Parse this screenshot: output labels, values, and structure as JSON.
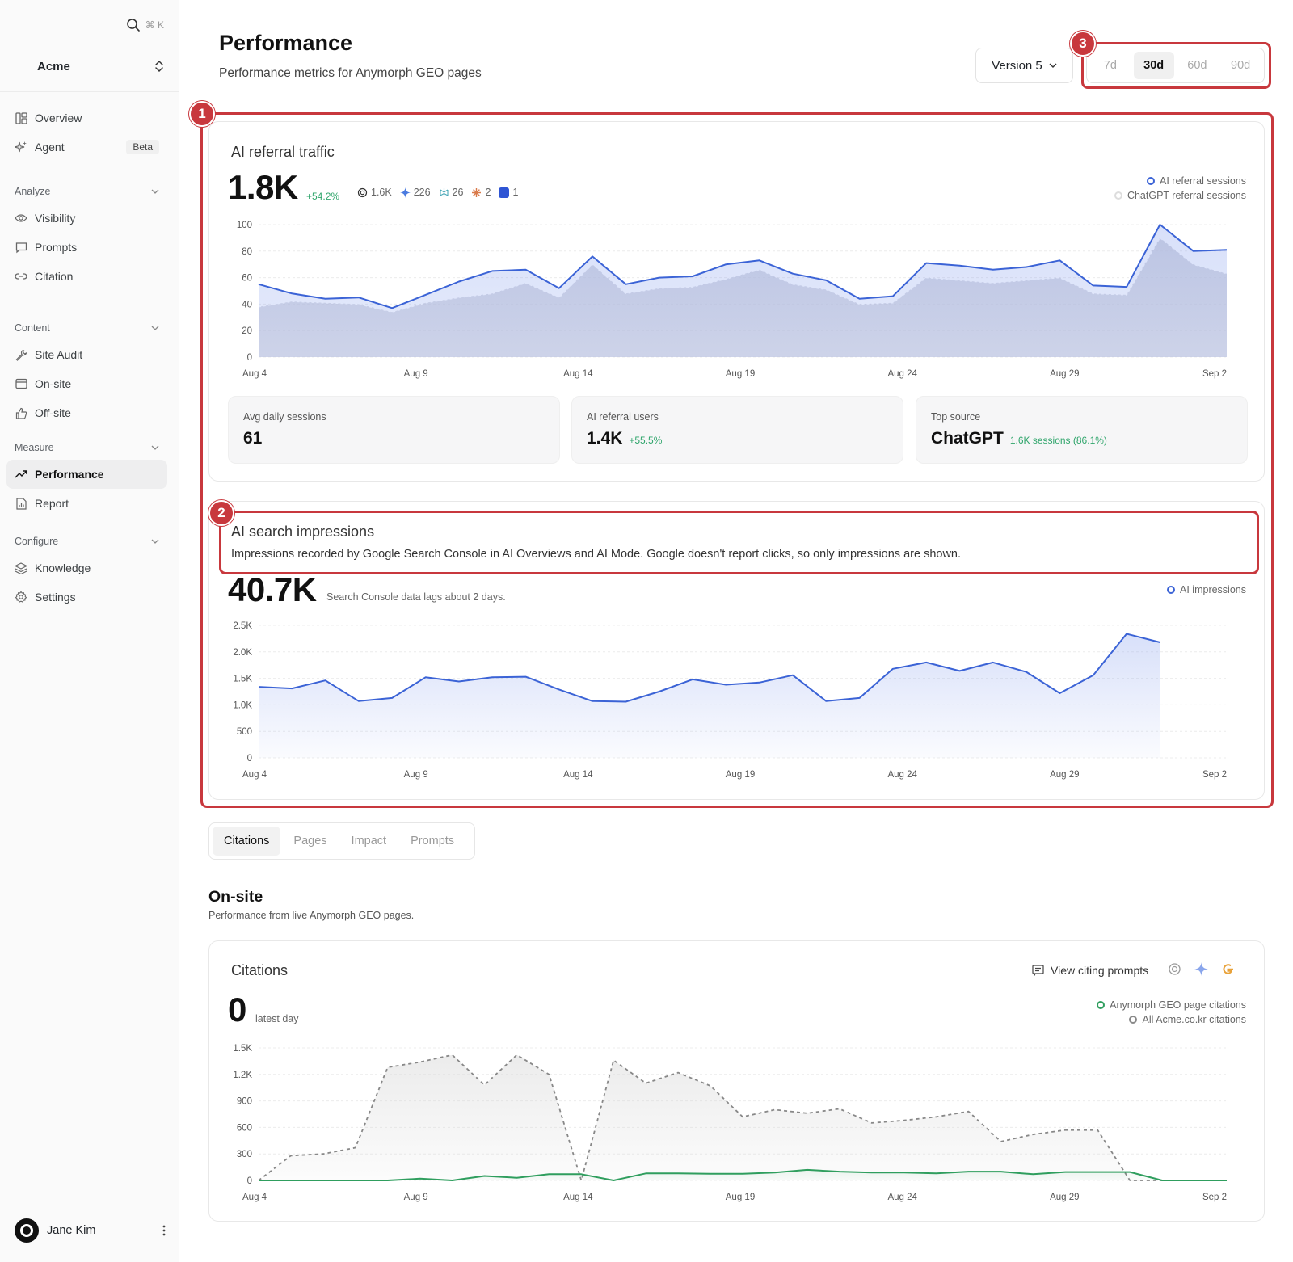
{
  "sidebar": {
    "search_shortcut": "⌘ K",
    "workspace": "Acme",
    "nav_top": [
      {
        "label": "Overview",
        "icon": "overview-icon"
      },
      {
        "label": "Agent",
        "icon": "sparkle-icon",
        "badge": "Beta"
      }
    ],
    "sections": [
      {
        "title": "Analyze",
        "items": [
          {
            "label": "Visibility",
            "icon": "eye-icon"
          },
          {
            "label": "Prompts",
            "icon": "chat-icon"
          },
          {
            "label": "Citation",
            "icon": "link-icon"
          }
        ]
      },
      {
        "title": "Content",
        "items": [
          {
            "label": "Site Audit",
            "icon": "wrench-icon"
          },
          {
            "label": "On-site",
            "icon": "window-icon"
          },
          {
            "label": "Off-site",
            "icon": "thumbs-up-icon"
          }
        ]
      },
      {
        "title": "Measure",
        "items": [
          {
            "label": "Performance",
            "icon": "trend-icon",
            "active": true
          },
          {
            "label": "Report",
            "icon": "report-icon"
          }
        ]
      },
      {
        "title": "Configure",
        "items": [
          {
            "label": "Knowledge",
            "icon": "layers-icon"
          },
          {
            "label": "Settings",
            "icon": "gear-icon"
          }
        ]
      }
    ],
    "user": "Jane Kim"
  },
  "header": {
    "title": "Performance",
    "subtitle": "Performance metrics for Anymorph GEO pages",
    "version": "Version 5",
    "ranges": [
      "7d",
      "30d",
      "60d",
      "90d"
    ],
    "active_range": "30d"
  },
  "annotations": [
    "1",
    "2",
    "3"
  ],
  "referral": {
    "title": "AI referral traffic",
    "total": "1.8K",
    "delta": "+54.2%",
    "sources": [
      {
        "icon": "openai-icon",
        "value": "1.6K",
        "color": "#333333"
      },
      {
        "icon": "gemini-icon",
        "value": "226",
        "color": "#4a7be0"
      },
      {
        "icon": "perplexity-icon",
        "value": "26",
        "color": "#4aa8b8"
      },
      {
        "icon": "claude-icon",
        "value": "2",
        "color": "#d97a4a"
      },
      {
        "icon": "copilot-icon",
        "value": "1",
        "color": "#2f55d4"
      }
    ],
    "legend": [
      "AI referral sessions",
      "ChatGPT referral sessions"
    ],
    "stats": [
      {
        "label": "Avg daily sessions",
        "value": "61",
        "sub": ""
      },
      {
        "label": "AI referral users",
        "value": "1.4K",
        "sub": "+55.5%"
      },
      {
        "label": "Top source",
        "value": "ChatGPT",
        "sub": "1.6K sessions (86.1%)"
      }
    ]
  },
  "impressions": {
    "title": "AI search impressions",
    "description": "Impressions recorded by Google Search Console in AI Overviews and AI Mode. Google doesn't report clicks, so only impressions are shown.",
    "total": "40.7K",
    "note": "Search Console data lags about 2 days.",
    "legend": [
      "AI impressions"
    ]
  },
  "tabs": [
    "Citations",
    "Pages",
    "Impact",
    "Prompts"
  ],
  "active_tab": "Citations",
  "onsite": {
    "title": "On-site",
    "subtitle": "Performance from live Anymorph GEO pages."
  },
  "citations": {
    "title": "Citations",
    "total": "0",
    "total_note": "latest day",
    "view_prompts": "View citing prompts",
    "legend": [
      "Anymorph GEO page citations",
      "All Acme.co.kr citations"
    ]
  },
  "chart_data": [
    {
      "type": "area",
      "title": "AI referral traffic",
      "x_ticks": [
        "Aug 4",
        "Aug 9",
        "Aug 14",
        "Aug 19",
        "Aug 24",
        "Aug 29",
        "Sep 2"
      ],
      "ylim": [
        0,
        100
      ],
      "y_ticks": [
        "0",
        "20",
        "40",
        "60",
        "80",
        "100"
      ],
      "series": [
        {
          "name": "AI referral sessions",
          "color": "#3b63d6",
          "values": [
            55,
            48,
            44,
            45,
            37,
            47,
            57,
            65,
            66,
            52,
            76,
            55,
            60,
            61,
            70,
            73,
            63,
            58,
            44,
            46,
            71,
            69,
            66,
            68,
            73,
            54,
            53,
            100,
            80,
            81
          ]
        },
        {
          "name": "ChatGPT referral sessions",
          "color": "#c9cbd6",
          "values": [
            38,
            42,
            41,
            40,
            34,
            41,
            45,
            48,
            56,
            45,
            70,
            48,
            52,
            53,
            59,
            66,
            55,
            51,
            40,
            41,
            60,
            58,
            56,
            58,
            60,
            48,
            47,
            90,
            70,
            63
          ]
        }
      ]
    },
    {
      "type": "area",
      "title": "AI search impressions",
      "x_ticks": [
        "Aug 4",
        "Aug 9",
        "Aug 14",
        "Aug 19",
        "Aug 24",
        "Aug 29",
        "Sep 2"
      ],
      "ylim": [
        0,
        2500
      ],
      "y_ticks": [
        "0",
        "500",
        "1.0K",
        "1.5K",
        "2.0K",
        "2.5K"
      ],
      "series": [
        {
          "name": "AI impressions",
          "color": "#3b63d6",
          "values": [
            1340,
            1310,
            1460,
            1070,
            1130,
            1520,
            1440,
            1520,
            1530,
            1290,
            1070,
            1060,
            1250,
            1480,
            1380,
            1420,
            1560,
            1070,
            1130,
            1680,
            1800,
            1640,
            1800,
            1620,
            1220,
            1560,
            2340,
            2180
          ]
        }
      ]
    },
    {
      "type": "line",
      "title": "Citations",
      "x_ticks": [
        "Aug 4",
        "Aug 9",
        "Aug 14",
        "Aug 19",
        "Aug 24",
        "Aug 29",
        "Sep 2"
      ],
      "ylim": [
        0,
        1500
      ],
      "y_ticks": [
        "0",
        "300",
        "600",
        "900",
        "1.2K",
        "1.5K"
      ],
      "series": [
        {
          "name": "Anymorph GEO page citations",
          "color": "#2f9e5e",
          "values": [
            0,
            0,
            0,
            0,
            0,
            20,
            0,
            50,
            30,
            70,
            70,
            0,
            80,
            80,
            75,
            75,
            90,
            120,
            100,
            90,
            90,
            80,
            100,
            100,
            70,
            95,
            95,
            95,
            0,
            0,
            0
          ]
        },
        {
          "name": "All Acme.co.kr citations",
          "color": "#888888",
          "values": [
            0,
            280,
            300,
            370,
            1280,
            1340,
            1420,
            1080,
            1420,
            1200,
            0,
            1360,
            1100,
            1220,
            1070,
            720,
            800,
            760,
            810,
            650,
            680,
            720,
            780,
            440,
            520,
            570,
            570,
            0,
            0,
            0,
            0
          ]
        }
      ]
    }
  ]
}
